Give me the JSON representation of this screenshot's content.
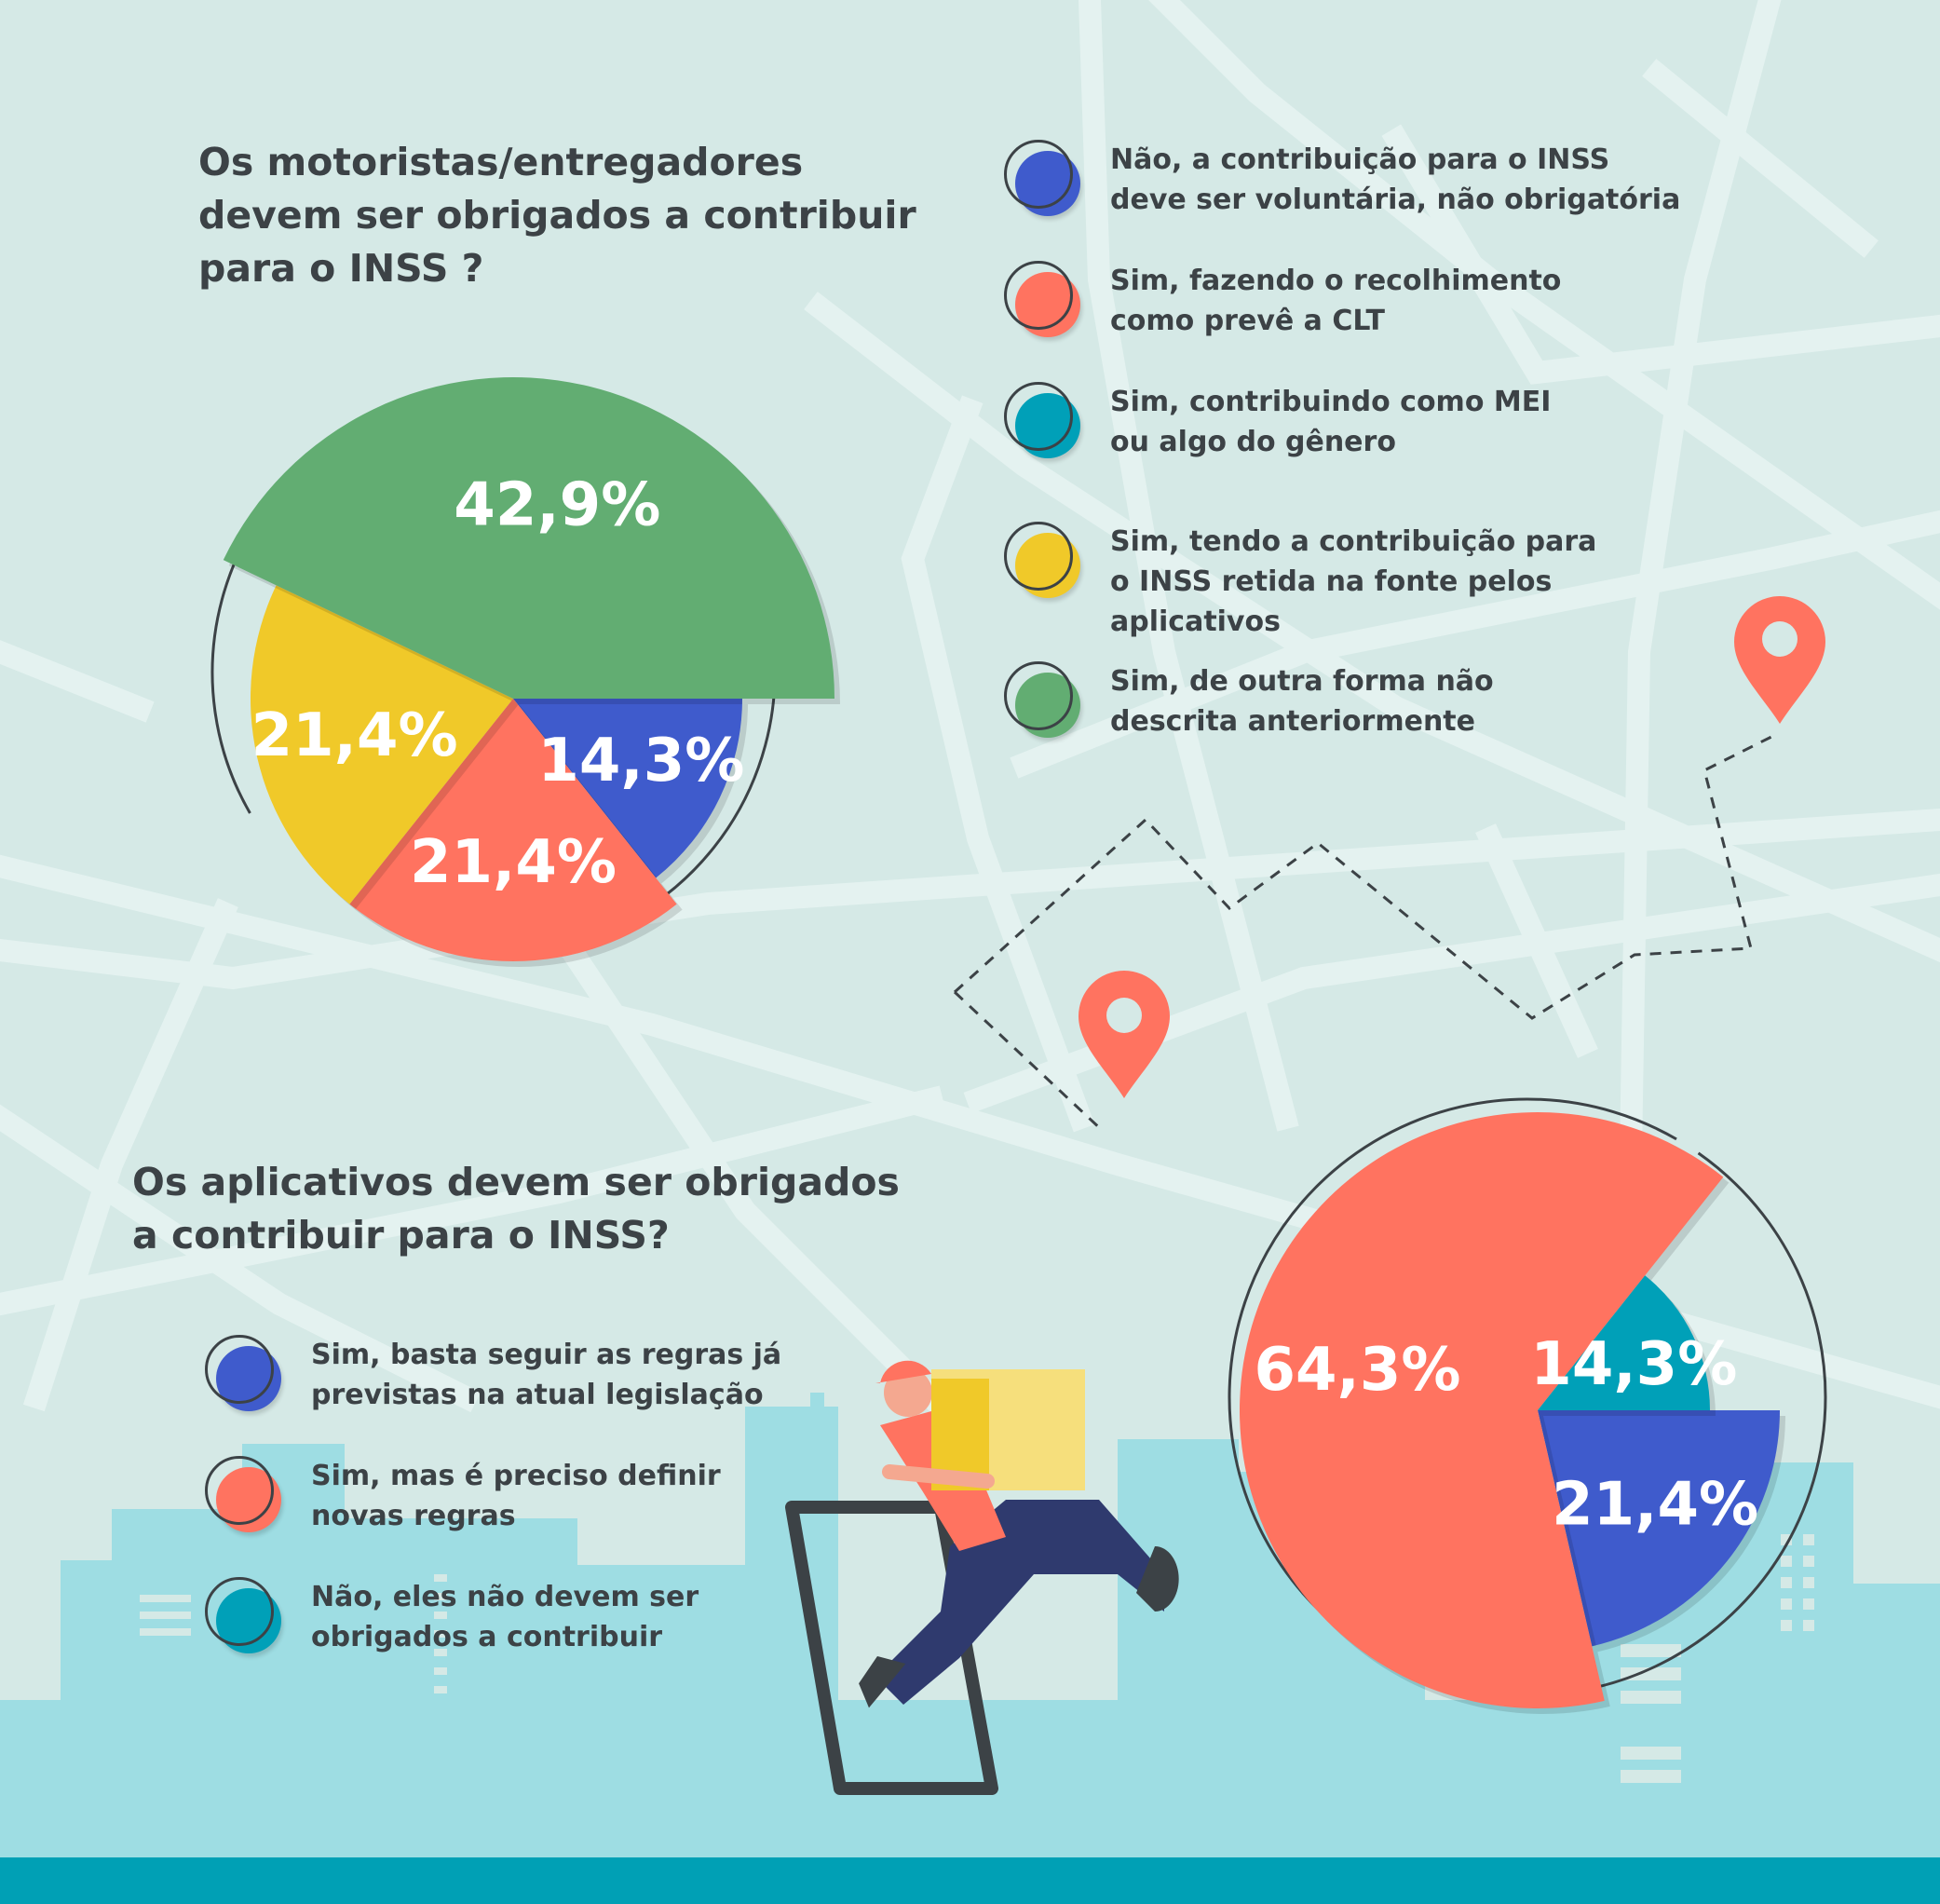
{
  "colors": {
    "blue": "#3f5bcc",
    "red": "#ff7360",
    "teal": "#00a0b8",
    "yellow": "#f0c929",
    "green": "#62ad72",
    "text": "#3c4246",
    "background": "#d5e9e6",
    "road": "#e4f2f0",
    "skyline": "#9edde3",
    "footer": "#00a0b5",
    "pin": "#ff7360"
  },
  "chart_data": [
    {
      "type": "pie",
      "title": "Os motoristas/entregadores devem ser obrigados a contribuir para o INSS ?",
      "title_lines": [
        "Os motoristas/entregadores",
        "devem ser obrigados a contribuir",
        "para o INSS ?"
      ],
      "slices": [
        {
          "label": "Não, a contribuição para o INSS deve ser voluntária, não obrigatória",
          "legend_text": "Não, a contribuição para o INSS\ndeve ser voluntária, não obrigatória",
          "value": 14.3,
          "display": "14,3%",
          "color": "#3f5bcc"
        },
        {
          "label": "Sim, fazendo o recolhimento como prevê a CLT",
          "legend_text": "Sim, fazendo o recolhimento\ncomo prevê a CLT",
          "value": 21.4,
          "display": "21,4%",
          "color": "#ff7360"
        },
        {
          "label": "Sim, contribuindo como MEI ou algo do gênero",
          "legend_text": "Sim, contribuindo como MEI\nou algo do gênero",
          "value": 0,
          "display": "",
          "color": "#00a0b8"
        },
        {
          "label": "Sim, tendo a contribuição para o INSS retida na fonte pelos aplicativos",
          "legend_text": "Sim, tendo a contribuição para\no INSS retida na fonte pelos\naplicativos",
          "value": 21.4,
          "display": "21,4%",
          "color": "#f0c929"
        },
        {
          "label": "Sim, de outra forma não descrita anteriormente",
          "legend_text": "Sim, de outra forma não\ndescrita anteriormente",
          "value": 42.9,
          "display": "42,9%",
          "color": "#62ad72"
        }
      ],
      "legend_position": "right"
    },
    {
      "type": "pie",
      "title": "Os aplicativos devem ser obrigados a contribuir para o INSS?",
      "title_lines": [
        "Os aplicativos devem ser obrigados",
        "a contribuir para o INSS?"
      ],
      "slices": [
        {
          "label": "Sim, basta seguir as regras já previstas na atual legislação",
          "legend_text": "Sim, basta seguir as regras já\nprevistas na atual legislação",
          "value": 21.4,
          "display": "21,4%",
          "color": "#3f5bcc"
        },
        {
          "label": "Sim, mas é preciso definir novas regras",
          "legend_text": "Sim, mas é preciso definir\nnovas regras",
          "value": 64.3,
          "display": "64,3%",
          "color": "#ff7360"
        },
        {
          "label": "Não, eles não devem ser obrigados a contribuir",
          "legend_text": "Não, eles não devem ser\nobrigados a contribuir",
          "value": 14.3,
          "display": "14,3%",
          "color": "#00a0b8"
        }
      ],
      "legend_position": "left"
    }
  ],
  "icons": [
    "map-pin-icon",
    "map-pin-icon",
    "delivery-person-illustration",
    "smartphone-illustration",
    "city-skyline"
  ]
}
